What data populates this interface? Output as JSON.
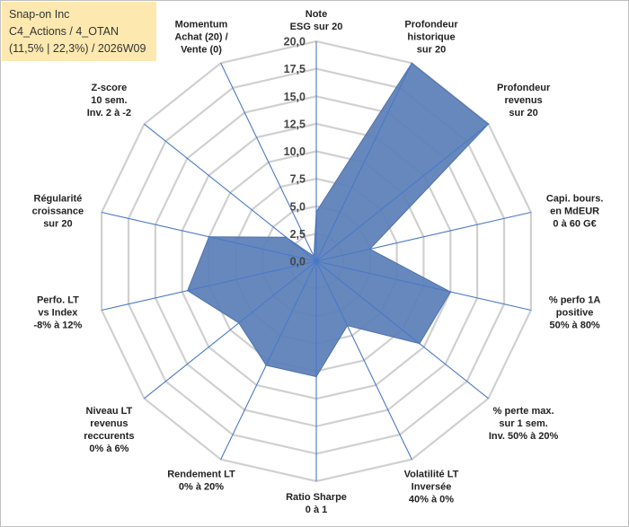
{
  "info": {
    "line1": "Snap-on Inc",
    "line2": "C4_Actions / 4_OTAN",
    "line3": "(11,5% | 22,3%) / 2026W09"
  },
  "chart_data": {
    "type": "radar",
    "title": "",
    "rmin": 0,
    "rmax": 20,
    "tick_step": 2.5,
    "ticks": [
      "0,0",
      "2,5",
      "5,0",
      "7,5",
      "10,0",
      "12,5",
      "15,0",
      "17,5",
      "20,0"
    ],
    "grid": true,
    "series_color": "#5a7fb8",
    "axes": [
      {
        "label": [
          "Note",
          "ESG sur 20"
        ],
        "value": 4.5
      },
      {
        "label": [
          "Profondeur",
          "historique",
          "sur 20"
        ],
        "value": 20.0
      },
      {
        "label": [
          "Profondeur",
          "revenus",
          "sur 20"
        ],
        "value": 20.0
      },
      {
        "label": [
          "Capi. bours.",
          "en MdEUR",
          "0 à 60 G€"
        ],
        "value": 5.0
      },
      {
        "label": [
          "% perfo 1A",
          "positive",
          "50% à 80%"
        ],
        "value": 12.5
      },
      {
        "label": [
          "% perte max.",
          "sur 1 sem.",
          "Inv. 50% à 20%"
        ],
        "value": 12.0
      },
      {
        "label": [
          "Volatilité LT",
          "Inversée",
          "40% à 0%"
        ],
        "value": 6.5
      },
      {
        "label": [
          "Ratio Sharpe",
          "0 à 1"
        ],
        "value": 10.5
      },
      {
        "label": [
          "Rendement LT",
          "0% à 20%"
        ],
        "value": 10.5
      },
      {
        "label": [
          "Niveau LT",
          "revenus",
          "reccurents",
          "0% à 6%"
        ],
        "value": 9.0
      },
      {
        "label": [
          "Perfo. LT",
          "vs Index",
          "-8% à 12%"
        ],
        "value": 12.0
      },
      {
        "label": [
          "Régularité",
          "croissance",
          "sur 20"
        ],
        "value": 10.0
      },
      {
        "label": [
          "Z-score",
          "10 sem.",
          "Inv. 2 à -2"
        ],
        "value": 3.5
      },
      {
        "label": [
          "Momentum",
          "Achat (20) /",
          "Vente (0)"
        ],
        "value": 0.5
      }
    ]
  }
}
